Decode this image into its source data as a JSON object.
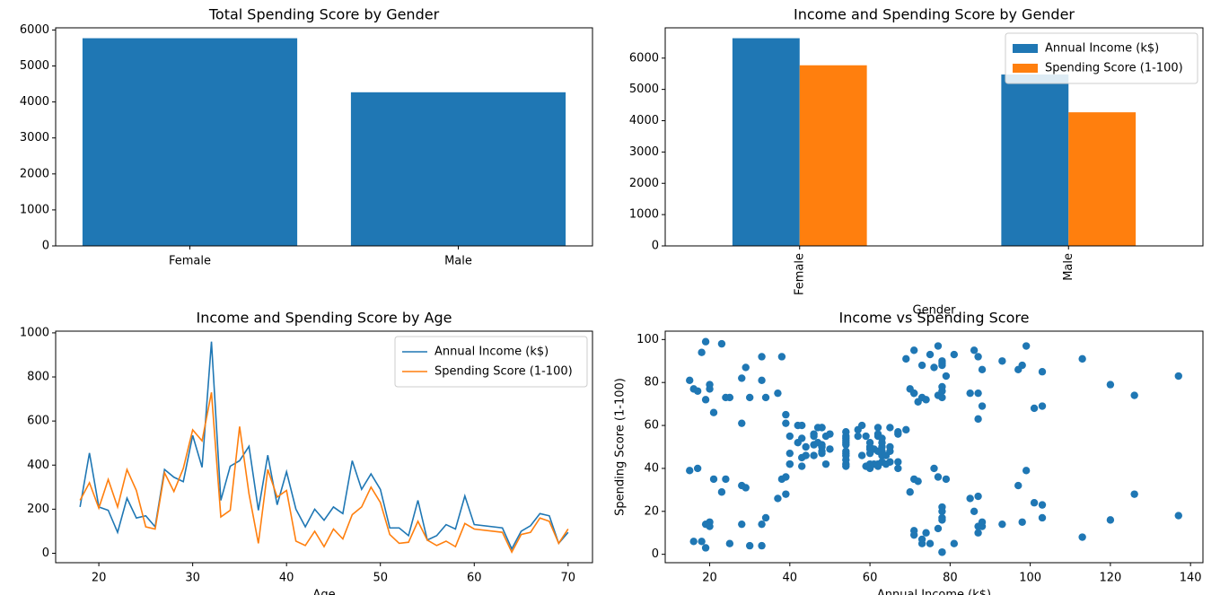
{
  "chart_data": [
    {
      "type": "bar",
      "title": "Total Spending Score by Gender",
      "categories": [
        "Female",
        "Male"
      ],
      "values": [
        5771,
        4269
      ],
      "color": "#1f77b4",
      "ylim": [
        0,
        6060
      ],
      "yticks": [
        0,
        1000,
        2000,
        3000,
        4000,
        5000,
        6000
      ]
    },
    {
      "type": "bar",
      "title": "Income and Spending Score by Gender",
      "xlabel": "Gender",
      "categories": [
        "Female",
        "Male"
      ],
      "xtick_rotation": 90,
      "series": [
        {
          "name": "Annual Income (k$)",
          "color": "#1f77b4",
          "values": [
            6636,
            5476
          ]
        },
        {
          "name": "Spending Score (1-100)",
          "color": "#ff7f0e",
          "values": [
            5771,
            4269
          ]
        }
      ],
      "ylim": [
        0,
        6968
      ],
      "yticks": [
        0,
        1000,
        2000,
        3000,
        4000,
        5000,
        6000
      ],
      "legend": "upper right"
    },
    {
      "type": "line",
      "title": "Income and Spending Score by Age",
      "xlabel": "Age",
      "x": [
        18,
        19,
        20,
        21,
        22,
        23,
        24,
        25,
        26,
        27,
        28,
        29,
        30,
        31,
        32,
        33,
        34,
        35,
        36,
        37,
        38,
        39,
        40,
        41,
        42,
        43,
        44,
        45,
        46,
        47,
        48,
        49,
        50,
        51,
        52,
        53,
        54,
        55,
        56,
        57,
        58,
        59,
        60,
        63,
        64,
        65,
        66,
        67,
        68,
        69,
        70
      ],
      "series": [
        {
          "name": "Annual Income (k$)",
          "color": "#1f77b4",
          "values": [
            210,
            455,
            210,
            195,
            95,
            250,
            160,
            170,
            120,
            380,
            345,
            325,
            535,
            390,
            960,
            240,
            395,
            420,
            485,
            195,
            445,
            220,
            370,
            200,
            120,
            200,
            150,
            210,
            180,
            420,
            290,
            360,
            290,
            115,
            115,
            80,
            240,
            60,
            80,
            130,
            110,
            260,
            130,
            115,
            20,
            100,
            125,
            180,
            170,
            45,
            95
          ]
        },
        {
          "name": "Spending Score (1-100)",
          "color": "#ff7f0e",
          "values": [
            240,
            320,
            205,
            335,
            210,
            380,
            285,
            120,
            110,
            365,
            280,
            385,
            560,
            510,
            730,
            165,
            195,
            575,
            270,
            45,
            380,
            255,
            285,
            55,
            35,
            100,
            30,
            110,
            65,
            175,
            210,
            300,
            230,
            85,
            45,
            50,
            145,
            60,
            35,
            55,
            30,
            135,
            110,
            95,
            5,
            85,
            95,
            160,
            145,
            45,
            110
          ]
        }
      ],
      "xlim": [
        15.4,
        72.6
      ],
      "xticks": [
        20,
        30,
        40,
        50,
        60,
        70
      ],
      "ylim": [
        -42.75,
        1007.75
      ],
      "yticks": [
        0,
        200,
        400,
        600,
        800,
        1000
      ],
      "legend": "upper right"
    },
    {
      "type": "scatter",
      "title": "Income vs Spending Score",
      "xlabel": "Annual Income (k$)",
      "ylabel": "Spending Score (1-100)",
      "color": "#1f77b4",
      "x": [
        15,
        15,
        16,
        16,
        17,
        17,
        18,
        18,
        19,
        19,
        19,
        19,
        20,
        20,
        20,
        20,
        21,
        21,
        23,
        23,
        24,
        24,
        25,
        25,
        28,
        28,
        28,
        28,
        29,
        29,
        30,
        30,
        33,
        33,
        33,
        33,
        34,
        34,
        37,
        37,
        38,
        38,
        39,
        39,
        39,
        39,
        40,
        40,
        40,
        40,
        42,
        42,
        43,
        43,
        43,
        43,
        44,
        44,
        46,
        46,
        46,
        46,
        47,
        47,
        48,
        48,
        48,
        48,
        48,
        48,
        49,
        49,
        50,
        50,
        54,
        54,
        54,
        54,
        54,
        54,
        54,
        54,
        54,
        54,
        54,
        54,
        57,
        57,
        58,
        58,
        59,
        59,
        60,
        60,
        60,
        60,
        60,
        60,
        61,
        61,
        62,
        62,
        62,
        62,
        62,
        62,
        63,
        63,
        63,
        63,
        63,
        63,
        64,
        64,
        65,
        65,
        65,
        65,
        67,
        67,
        67,
        67,
        69,
        69,
        70,
        70,
        71,
        71,
        71,
        71,
        71,
        71,
        72,
        72,
        73,
        73,
        73,
        73,
        74,
        74,
        75,
        75,
        76,
        76,
        77,
        77,
        77,
        77,
        78,
        78,
        78,
        78,
        78,
        78,
        78,
        78,
        78,
        78,
        78,
        78,
        79,
        79,
        81,
        81,
        85,
        85,
        86,
        86,
        87,
        87,
        87,
        87,
        87,
        87,
        88,
        88,
        88,
        88,
        93,
        93,
        97,
        97,
        98,
        98,
        99,
        99,
        101,
        101,
        103,
        103,
        103,
        103,
        113,
        113,
        120,
        120,
        126,
        126,
        137,
        137
      ],
      "values": [
        39,
        81,
        6,
        77,
        40,
        76,
        6,
        94,
        3,
        72,
        14,
        99,
        15,
        77,
        13,
        79,
        35,
        66,
        29,
        98,
        35,
        73,
        5,
        73,
        14,
        82,
        32,
        61,
        31,
        87,
        4,
        73,
        4,
        92,
        14,
        81,
        17,
        73,
        26,
        75,
        35,
        92,
        36,
        61,
        28,
        65,
        55,
        47,
        42,
        42,
        52,
        60,
        54,
        60,
        45,
        41,
        50,
        46,
        51,
        46,
        56,
        55,
        52,
        59,
        51,
        59,
        50,
        48,
        59,
        47,
        55,
        42,
        49,
        56,
        47,
        54,
        53,
        48,
        52,
        42,
        51,
        55,
        41,
        44,
        57,
        46,
        58,
        55,
        60,
        46,
        55,
        41,
        49,
        40,
        42,
        52,
        47,
        50,
        42,
        49,
        41,
        48,
        59,
        55,
        56,
        42,
        50,
        46,
        43,
        48,
        52,
        54,
        42,
        46,
        48,
        50,
        43,
        59,
        43,
        57,
        56,
        40,
        58,
        91,
        29,
        77,
        35,
        95,
        11,
        75,
        9,
        75,
        34,
        71,
        5,
        88,
        7,
        73,
        10,
        72,
        5,
        93,
        40,
        87,
        12,
        97,
        36,
        74,
        22,
        90,
        17,
        88,
        20,
        76,
        16,
        89,
        1,
        78,
        1,
        73,
        35,
        83,
        5,
        93,
        26,
        75,
        20,
        95,
        27,
        63,
        13,
        75,
        10,
        92,
        13,
        86,
        15,
        69,
        14,
        90,
        32,
        86,
        15,
        88,
        39,
        97,
        24,
        68,
        17,
        85,
        23,
        69,
        8,
        91,
        16,
        79,
        28,
        74,
        18,
        83
      ],
      "xlim": [
        8.9,
        143.1
      ],
      "xticks": [
        20,
        40,
        60,
        80,
        100,
        120,
        140
      ],
      "ylim": [
        -3.9,
        103.9
      ],
      "yticks": [
        0,
        20,
        40,
        60,
        80,
        100
      ]
    }
  ]
}
